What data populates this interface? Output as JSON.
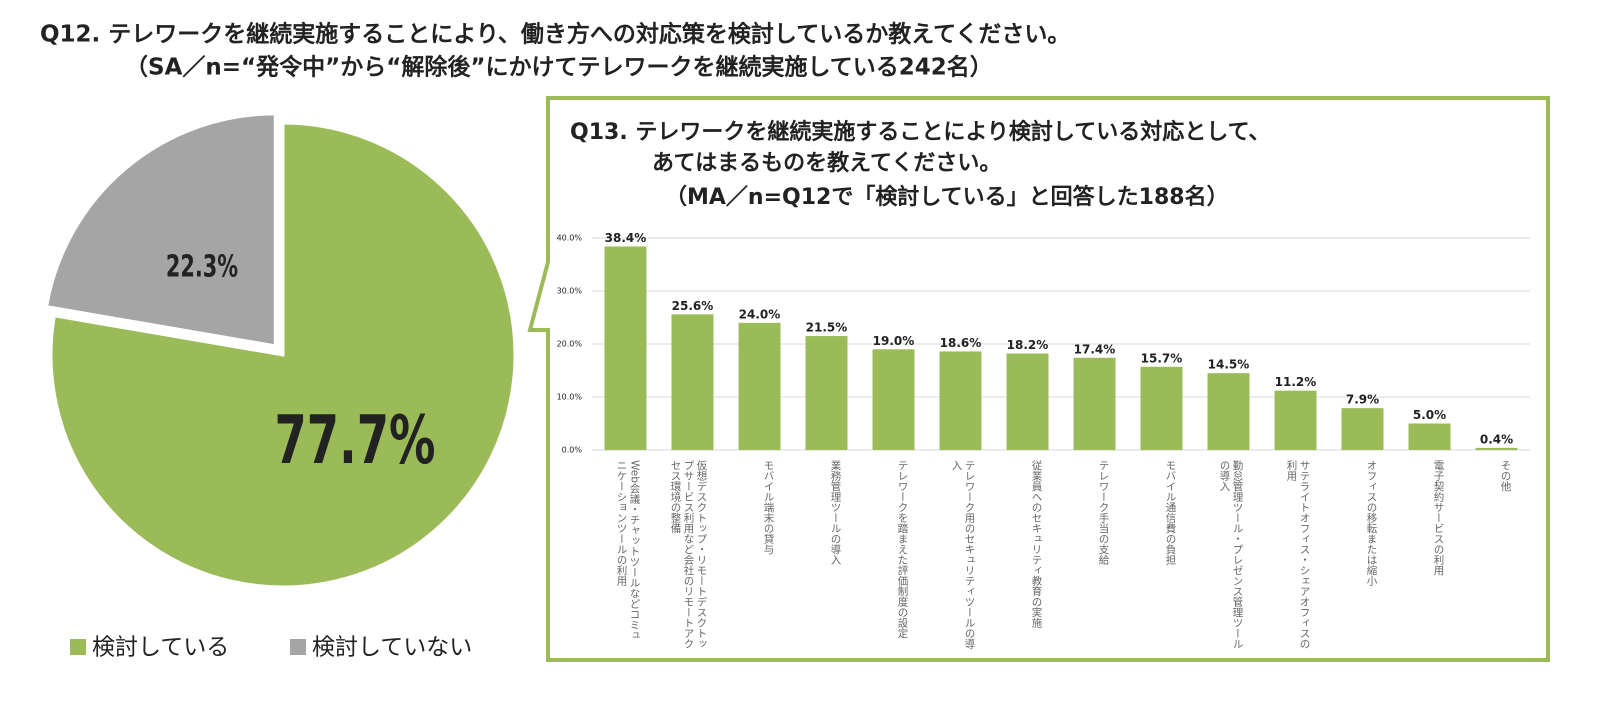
{
  "chart_data": [
    {
      "type": "pie",
      "title": "Q12. テレワークを継続実施することにより、働き方への対応策を検討しているか教えてください。",
      "subtitle": "（SA／n=“発令中”から“解除後”にかけてテレワークを継続実施している242名）",
      "categories": [
        "検討している",
        "検討していない"
      ],
      "values": [
        77.7,
        22.3
      ],
      "value_labels": [
        "77.7%",
        "22.3%"
      ],
      "colors": [
        "#9bbb59",
        "#a5a5a5"
      ],
      "legend": "bottom-left"
    },
    {
      "type": "bar",
      "title": [
        "Q13. テレワークを継続実施することにより検討している対応として、",
        "あてはまるものを教えてください。"
      ],
      "subtitle": "（MA／n=Q12で「検討している」と回答した188名）",
      "categories": [
        "Web会議・チャットツールなどコミュニケーションツールの利用",
        "仮想デスクトップ・リモートデスクトップサービス利用など会社のリモートアクセス環境の整備",
        "モバイル端末の貸与",
        "業務管理ツールの導入",
        "テレワークを踏まえた評価制度の設定",
        "テレワーク用のセキュリティツールの導入",
        "従業員へのセキュリティ教育の実施",
        "テレワーク手当の支給",
        "モバイル通信費の負担",
        "勤怠管理ツール・プレゼンス管理ツールの導入",
        "サテライトオフィス・シェアオフィスの利用",
        "オフィスの移転または縮小",
        "電子契約サービスの利用",
        "その他"
      ],
      "values": [
        38.4,
        25.6,
        24.0,
        21.5,
        19.0,
        18.6,
        18.2,
        17.4,
        15.7,
        14.5,
        11.2,
        7.9,
        5.0,
        0.4
      ],
      "value_labels": [
        "38.4%",
        "25.6%",
        "24.0%",
        "21.5%",
        "19.0%",
        "18.6%",
        "18.2%",
        "17.4%",
        "15.7%",
        "14.5%",
        "11.2%",
        "7.9%",
        "5.0%",
        "0.4%"
      ],
      "color": "#9bbb59",
      "ylim": [
        0,
        40
      ],
      "yticks": [
        {
          "value": 0,
          "label": "0.0%"
        },
        {
          "value": 10,
          "label": "10.0%"
        },
        {
          "value": 20,
          "label": "20.0%"
        },
        {
          "value": 30,
          "label": "30.0%"
        },
        {
          "value": 40,
          "label": "40.0%"
        }
      ],
      "grid": true
    }
  ]
}
